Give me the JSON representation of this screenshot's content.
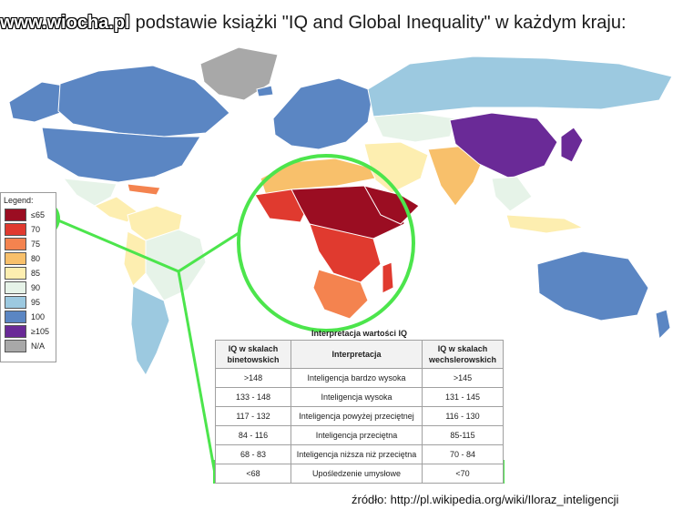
{
  "title": {
    "watermark": "www.wiocha.pl",
    "text": "podstawie książki \"IQ and Global Inequality\" w każdym kraju:"
  },
  "colors": {
    "ocean": "#ffffff",
    "highlight": "#4ce54c",
    "border": "#ffffff"
  },
  "legend": {
    "title": "Legend:",
    "items": [
      {
        "label": "≤65",
        "color": "#9b0d22"
      },
      {
        "label": "70",
        "color": "#e03a2f"
      },
      {
        "label": "75",
        "color": "#f4834f"
      },
      {
        "label": "80",
        "color": "#f8c06b"
      },
      {
        "label": "85",
        "color": "#fdeeb0"
      },
      {
        "label": "90",
        "color": "#e6f3e8"
      },
      {
        "label": "95",
        "color": "#9cc9e0"
      },
      {
        "label": "100",
        "color": "#5b86c3"
      },
      {
        "label": "≥105",
        "color": "#6a2a97"
      },
      {
        "label": "N/A",
        "color": "#a8a8a8"
      }
    ]
  },
  "table": {
    "caption": "Interpretacja wartości IQ",
    "headers": [
      "IQ w skalach binetowskich",
      "Interpretacja",
      "IQ w skalach wechslerowskich"
    ],
    "rows": [
      [
        ">148",
        "Inteligencja bardzo wysoka",
        ">145"
      ],
      [
        "133 - 148",
        "Inteligencja wysoka",
        "131 - 145"
      ],
      [
        "117 - 132",
        "Inteligencja powyżej przeciętnej",
        "116 - 130"
      ],
      [
        "84 - 116",
        "Inteligencja przeciętna",
        "85-115"
      ],
      [
        "68 - 83",
        "Inteligencja niższa niż przeciętna",
        "70 - 84"
      ],
      [
        "<68",
        "Upośledzenie umysłowe",
        "<70"
      ]
    ]
  },
  "source": "źródło: http://pl.wikipedia.org/wiki/Iloraz_inteligencji"
}
